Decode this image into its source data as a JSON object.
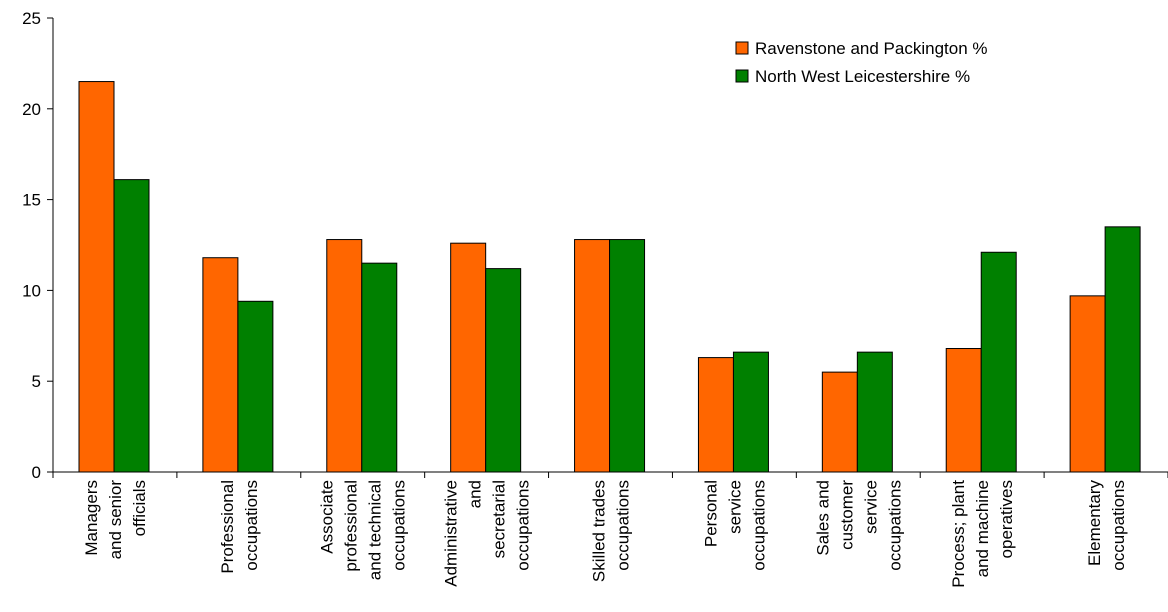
{
  "chart_data": {
    "type": "bar",
    "title": "",
    "xlabel": "",
    "ylabel": "",
    "ylim": [
      0,
      25
    ],
    "yticks": [
      0,
      5,
      10,
      15,
      20,
      25
    ],
    "grid": false,
    "legend_position": "top-right",
    "categories": [
      [
        "Managers",
        "and senior",
        "officials"
      ],
      [
        "Professional",
        "occupations"
      ],
      [
        "Associate",
        "professional",
        "and technical",
        "occupations"
      ],
      [
        "Administrative",
        "and",
        "secretarial",
        "occupations"
      ],
      [
        "Skilled trades",
        "occupations"
      ],
      [
        "Personal",
        "service",
        "occupations"
      ],
      [
        "Sales and",
        "customer",
        "service",
        "occupations"
      ],
      [
        "Process; plant",
        "and machine",
        "operatives"
      ],
      [
        "Elementary",
        "occupations"
      ]
    ],
    "series": [
      {
        "name": "Ravenstone and Packington %",
        "color": "#ff6600",
        "values": [
          21.5,
          11.8,
          12.8,
          12.6,
          12.8,
          6.3,
          5.5,
          6.8,
          9.7
        ]
      },
      {
        "name": "North West Leicestershire %",
        "color": "#008000",
        "values": [
          16.1,
          9.4,
          11.5,
          11.2,
          12.8,
          6.6,
          6.6,
          12.1,
          13.5
        ]
      }
    ]
  }
}
